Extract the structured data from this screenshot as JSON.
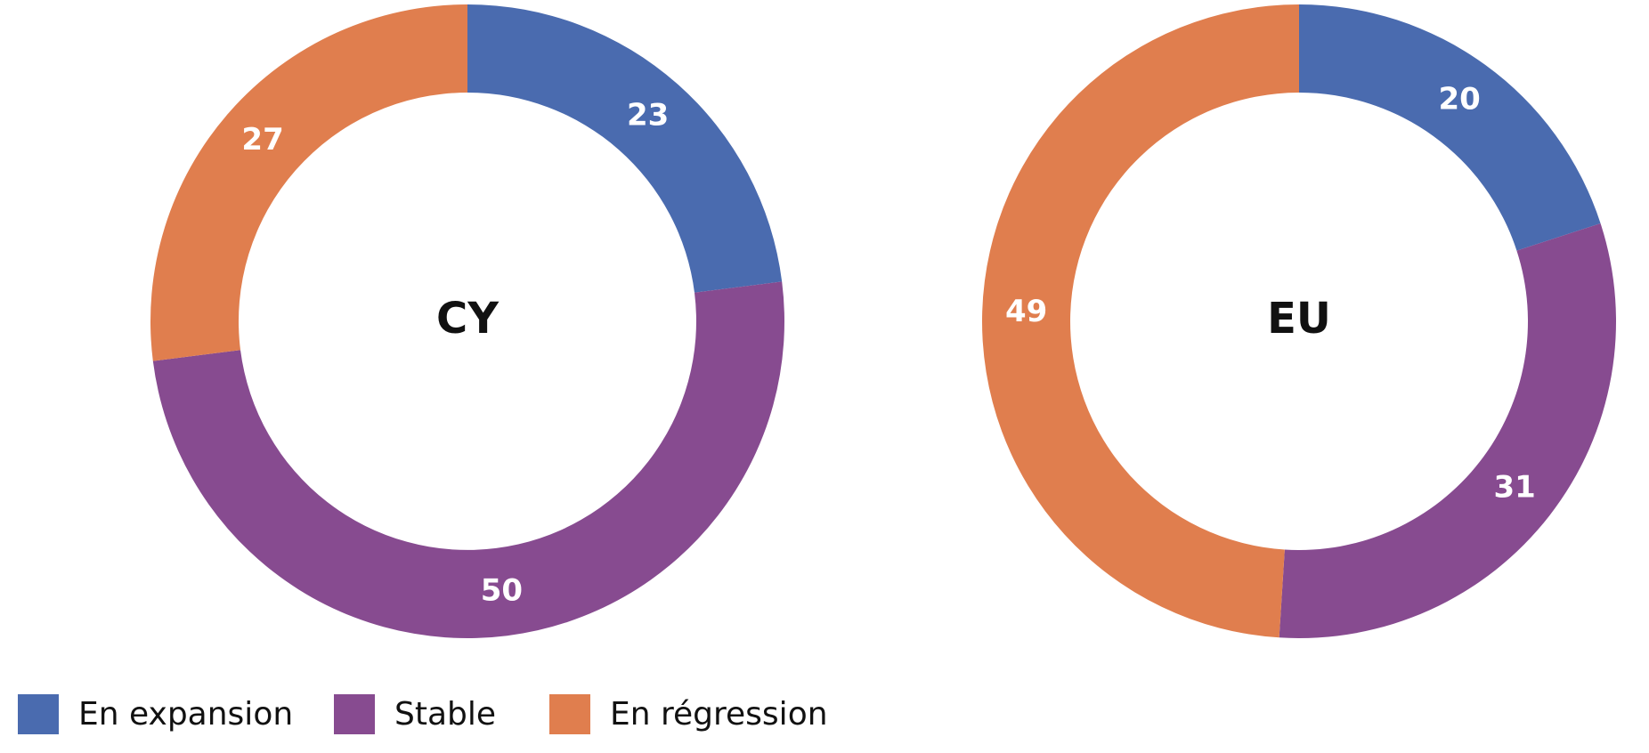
{
  "chart_data": [
    {
      "type": "donut",
      "title": "CY",
      "categories": [
        "En expansion",
        "Stable",
        "En régression"
      ],
      "colors": [
        "#4a6baf",
        "#874b90",
        "#e07e4e"
      ],
      "values": [
        23,
        50,
        27
      ]
    },
    {
      "type": "donut",
      "title": "EU",
      "categories": [
        "En expansion",
        "Stable",
        "En régression"
      ],
      "colors": [
        "#4a6baf",
        "#874b90",
        "#e07e4e"
      ],
      "values": [
        20,
        31,
        49
      ]
    }
  ]
}
